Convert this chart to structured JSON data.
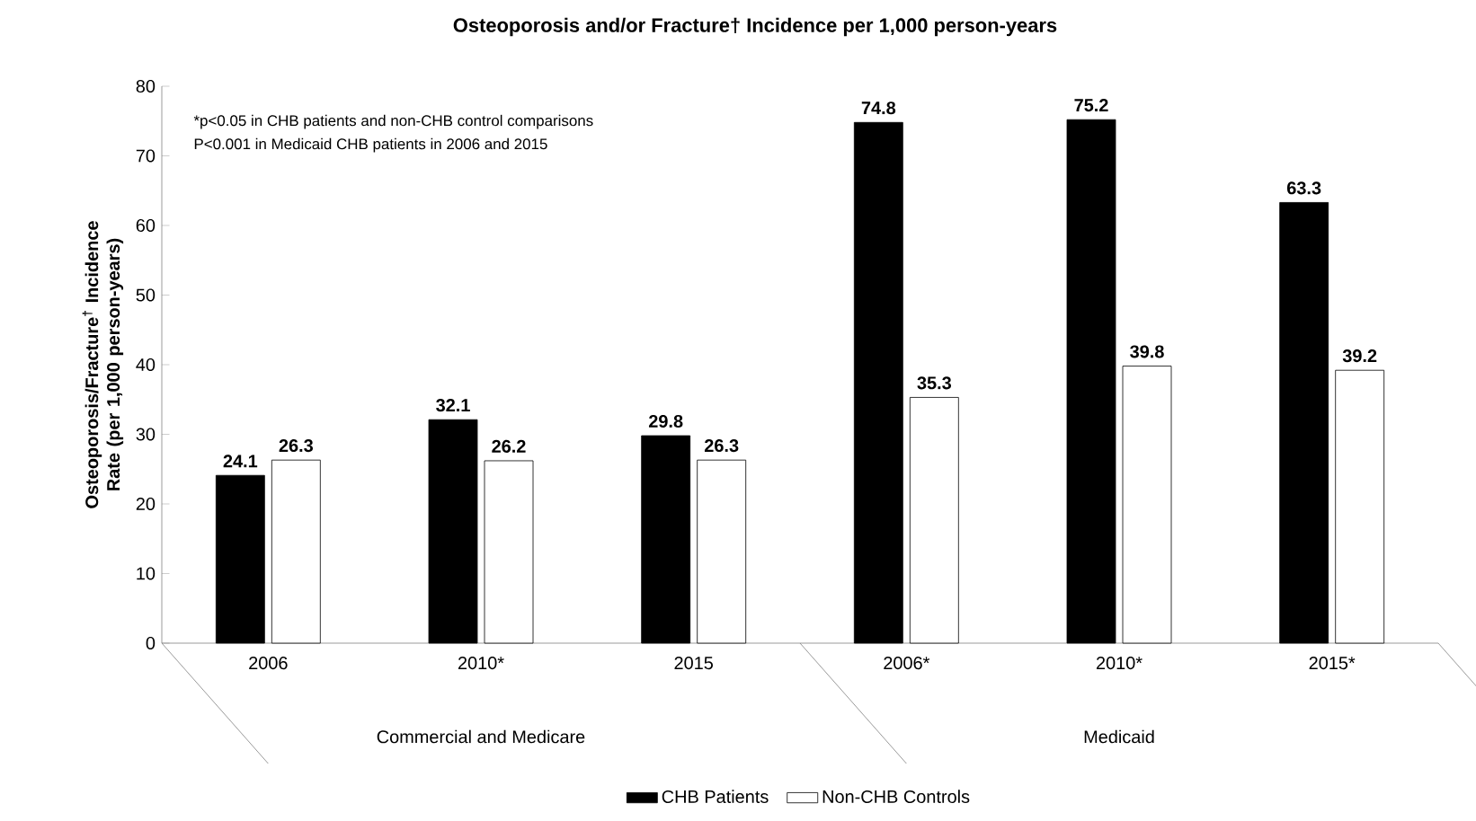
{
  "chart_data": {
    "type": "bar",
    "title": "Osteoporosis and/or Fracture† Incidence per 1,000 person-years",
    "ylabel": "Osteoporosis/Fracture$^{†}$ Incidence Rate (per 1,000 person-years)",
    "categories": [
      "2006",
      "2010*",
      "2015",
      "2006*",
      "2010*",
      "2015*"
    ],
    "series": [
      {
        "name": "CHB Patients",
        "color": "#000000",
        "values": [
          24.1,
          32.1,
          29.8,
          74.8,
          75.2,
          63.3
        ]
      },
      {
        "name": "Non-CHB Controls",
        "color": "#ffffff",
        "values": [
          26.3,
          26.2,
          26.3,
          35.3,
          39.8,
          39.2
        ]
      }
    ],
    "ylim": [
      0,
      80
    ],
    "yticks": [
      0,
      10,
      20,
      30,
      40,
      50,
      60,
      70,
      80
    ],
    "data_labels": true,
    "legend": "bottom",
    "annotations": [
      "*p<0.05 in CHB patients and non-CHB control comparisons",
      "P<0.001 in Medicaid CHB patients in 2006 and 2015",
      "Commercial and Medicare",
      "Medicaid"
    ]
  }
}
